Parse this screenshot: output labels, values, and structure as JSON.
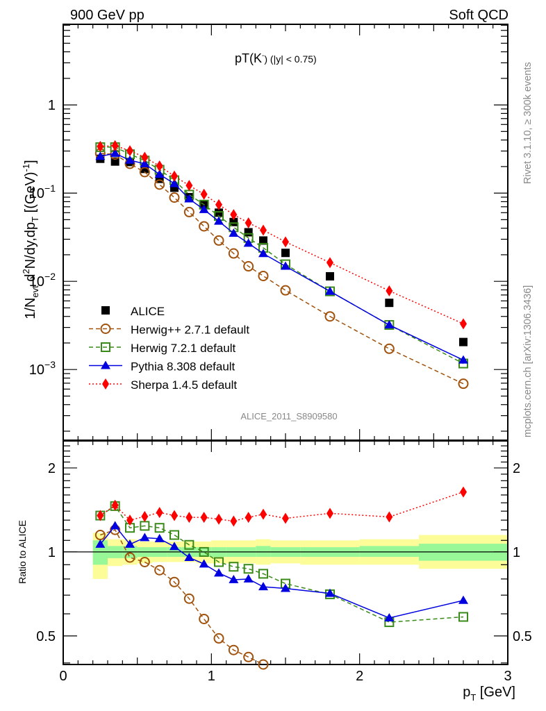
{
  "header": {
    "left": "900 GeV pp",
    "right": "Soft QCD"
  },
  "side_labels": {
    "rivet": "Rivet 3.1.10, ≥ 300k events",
    "mcplots": "mcplots.cern.ch [arXiv:1306.3436]"
  },
  "analysis_id": "ALICE_2011_S8909580",
  "colors": {
    "alice": "#000000",
    "herwigpp": "#a0520d",
    "herwig7": "#3a8a1a",
    "pythia": "#0000e0",
    "sherpa": "#ff0000",
    "band_stat": "#98f898",
    "band_total": "#fcfc98"
  },
  "chart_data": [
    {
      "type": "line",
      "title": "pT(K⁻) (|y| < 0.75)",
      "title_main": "pT(K",
      "title_sup": "-",
      "title_rest": ") (|y| < 0.75)",
      "xlabel": "p_T [GeV]",
      "ylabel": "1/N_evt d²N/dy,dp_T [(GeV)⁻¹]",
      "yscale": "log",
      "xlim": [
        0,
        3
      ],
      "ylim": [
        0.000158,
        8.2
      ],
      "yticks": [
        {
          "value": 1,
          "label": "1"
        },
        {
          "value": 0.1,
          "label": "10⁻¹",
          "base": "10",
          "exp": "−1"
        },
        {
          "value": 0.01,
          "label": "10⁻²",
          "base": "10",
          "exp": "−2"
        },
        {
          "value": 0.001,
          "label": "10⁻³",
          "base": "10",
          "exp": "−3"
        }
      ],
      "legend_position": "bottom-left",
      "x": [
        0.25,
        0.35,
        0.45,
        0.55,
        0.65,
        0.75,
        0.85,
        0.95,
        1.05,
        1.15,
        1.25,
        1.35,
        1.5,
        1.8,
        2.2,
        2.7
      ],
      "series": [
        {
          "name": "ALICE",
          "key": "alice",
          "marker": "square",
          "line": "none",
          "values": [
            0.245,
            0.228,
            0.225,
            0.188,
            0.145,
            0.115,
            0.09,
            0.074,
            0.06,
            0.047,
            0.036,
            0.029,
            0.021,
            0.0114,
            0.0057,
            0.00205
          ]
        },
        {
          "name": "Herwig++ 2.7.1 default",
          "key": "herwigpp",
          "marker": "open-circle",
          "line": "dashed",
          "values": [
            0.282,
            0.274,
            0.215,
            0.173,
            0.125,
            0.089,
            0.061,
            0.042,
            0.029,
            0.0207,
            0.0148,
            0.0115,
            0.0079,
            0.004,
            0.00172,
            0.00069
          ]
        },
        {
          "name": "Herwig 7.2.1 default",
          "key": "herwig7",
          "marker": "open-square",
          "line": "dashed",
          "values": [
            0.332,
            0.332,
            0.276,
            0.234,
            0.184,
            0.14,
            0.096,
            0.074,
            0.055,
            0.041,
            0.031,
            0.024,
            0.0156,
            0.0077,
            0.0032,
            0.00117
          ]
        },
        {
          "name": "Pythia 8.308 default",
          "key": "pythia",
          "marker": "triangle",
          "line": "solid",
          "values": [
            0.261,
            0.282,
            0.236,
            0.215,
            0.163,
            0.128,
            0.086,
            0.065,
            0.048,
            0.035,
            0.027,
            0.0206,
            0.0148,
            0.0077,
            0.0032,
            0.00128
          ]
        },
        {
          "name": "Sherpa 1.4.5 default",
          "key": "sherpa",
          "marker": "diamond",
          "line": "dotted",
          "values": [
            0.338,
            0.345,
            0.302,
            0.255,
            0.203,
            0.156,
            0.122,
            0.097,
            0.074,
            0.057,
            0.046,
            0.038,
            0.028,
            0.0163,
            0.0078,
            0.0033
          ]
        }
      ]
    },
    {
      "type": "line",
      "title": "",
      "xlabel": "p_T [GeV]",
      "ylabel": "Ratio to ALICE",
      "yscale": "log",
      "xlim": [
        0,
        3
      ],
      "ylim": [
        0.395,
        2.5
      ],
      "yticks": [
        {
          "value": 0.5,
          "label": "0.5"
        },
        {
          "value": 1,
          "label": "1"
        },
        {
          "value": 2,
          "label": "2"
        }
      ],
      "xticks": [
        {
          "value": 0,
          "label": "0"
        },
        {
          "value": 1,
          "label": "1"
        },
        {
          "value": 2,
          "label": "2"
        },
        {
          "value": 3,
          "label": "3"
        }
      ],
      "reference_line": 1,
      "bands": {
        "edges": [
          0.2,
          0.3,
          0.4,
          0.5,
          0.6,
          0.7,
          0.8,
          0.9,
          1.0,
          1.1,
          1.2,
          1.3,
          1.4,
          1.6,
          2.0,
          2.4,
          3.0
        ],
        "stat_low": [
          0.9,
          0.95,
          0.95,
          0.96,
          0.96,
          0.96,
          0.96,
          0.96,
          0.96,
          0.96,
          0.96,
          0.96,
          0.96,
          0.96,
          0.96,
          0.93
        ],
        "stat_high": [
          1.1,
          1.05,
          1.05,
          1.04,
          1.04,
          1.04,
          1.04,
          1.04,
          1.04,
          1.04,
          1.04,
          1.05,
          1.04,
          1.04,
          1.05,
          1.07
        ],
        "total_low": [
          0.8,
          0.89,
          0.9,
          0.91,
          0.92,
          0.92,
          0.92,
          0.91,
          0.91,
          0.91,
          0.91,
          0.9,
          0.91,
          0.9,
          0.9,
          0.87
        ],
        "total_high": [
          1.17,
          1.11,
          1.11,
          1.09,
          1.09,
          1.09,
          1.09,
          1.09,
          1.1,
          1.1,
          1.1,
          1.11,
          1.1,
          1.1,
          1.11,
          1.15
        ]
      },
      "x": [
        0.25,
        0.35,
        0.45,
        0.55,
        0.65,
        0.75,
        0.85,
        0.95,
        1.05,
        1.15,
        1.25,
        1.35,
        1.5,
        1.8,
        2.2,
        2.7
      ],
      "series": [
        {
          "name": "Herwig++ 2.7.1 default",
          "key": "herwigpp",
          "marker": "open-circle",
          "line": "dashed",
          "values": [
            1.15,
            1.2,
            0.955,
            0.92,
            0.86,
            0.78,
            0.68,
            0.575,
            0.49,
            0.445,
            0.42,
            0.395,
            null,
            null,
            null,
            null
          ]
        },
        {
          "name": "Herwig 7.2.1 default",
          "key": "herwig7",
          "marker": "open-square",
          "line": "dashed",
          "values": [
            1.35,
            1.46,
            1.22,
            1.24,
            1.22,
            1.15,
            1.06,
            1.0,
            0.92,
            0.885,
            0.87,
            0.835,
            0.77,
            0.705,
            0.56,
            0.585
          ]
        },
        {
          "name": "Pythia 8.308 default",
          "key": "pythia",
          "marker": "triangle",
          "line": "solid",
          "values": [
            1.065,
            1.24,
            1.065,
            1.125,
            1.115,
            1.045,
            0.955,
            0.905,
            0.84,
            0.795,
            0.8,
            0.75,
            0.74,
            0.71,
            0.58,
            0.67
          ]
        },
        {
          "name": "Sherpa 1.4.5 default",
          "key": "sherpa",
          "marker": "diamond",
          "line": "dotted",
          "values": [
            1.35,
            1.47,
            1.3,
            1.34,
            1.385,
            1.35,
            1.33,
            1.33,
            1.31,
            1.29,
            1.33,
            1.365,
            1.32,
            1.375,
            1.335,
            1.64
          ]
        }
      ]
    }
  ]
}
